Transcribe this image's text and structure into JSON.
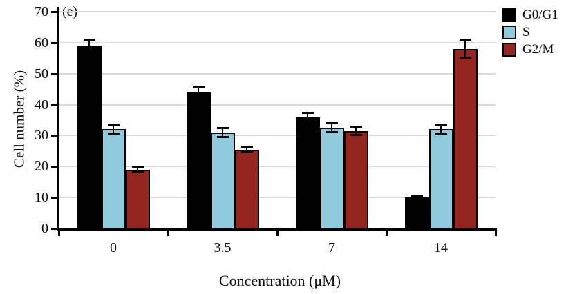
{
  "panel_label": "(e)",
  "chart_data": {
    "type": "bar",
    "title": "",
    "xlabel": "Concentration (μM)",
    "ylabel": "Cell number (%)",
    "ylim": [
      0,
      70
    ],
    "ytick_step": 10,
    "grid": true,
    "legend_position": "top-right-outside",
    "categories": [
      "0",
      "3.5",
      "7",
      "14"
    ],
    "series": [
      {
        "name": "G0/G1",
        "color": "#000000",
        "values": [
          59,
          44,
          36,
          10
        ],
        "errors": [
          2,
          2,
          1.5,
          0.5
        ]
      },
      {
        "name": "S",
        "color": "#8fcbdc",
        "values": [
          32,
          31,
          32.5,
          32
        ],
        "errors": [
          1.5,
          1.5,
          1.5,
          1.5
        ]
      },
      {
        "name": "G2/M",
        "color": "#93241e",
        "values": [
          19,
          25.5,
          31.5,
          58
        ],
        "errors": [
          1,
          1,
          1.5,
          3
        ]
      }
    ]
  },
  "colors": {
    "gridline": "#d9d9d9",
    "axis": "#000000",
    "bar_outline": "#000000",
    "text": "#0d0d12"
  }
}
